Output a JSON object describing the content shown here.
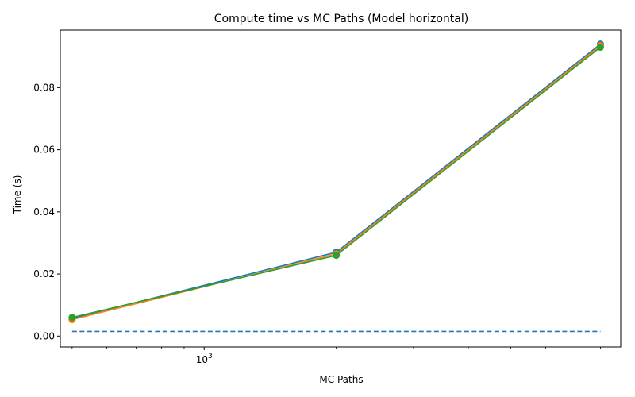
{
  "chart_data": {
    "type": "line",
    "title": "Compute time vs MC Paths (Model horizontal)",
    "xlabel": "MC Paths",
    "ylabel": "Time (s)",
    "xscale": "log",
    "xlim": [
      470,
      8900
    ],
    "ylim": [
      -0.0035,
      0.0985
    ],
    "x": [
      500,
      2000,
      8000
    ],
    "x_tick_labels": [
      {
        "value": 1000,
        "base": "10",
        "exp": "3"
      }
    ],
    "y_ticks": [
      0.0,
      0.02,
      0.04,
      0.06,
      0.08
    ],
    "y_tick_labels": [
      "0.00",
      "0.02",
      "0.04",
      "0.06",
      "0.08"
    ],
    "grid": false,
    "series": [
      {
        "color": "#1f77b4",
        "style": "solid",
        "marker": true,
        "values": [
          0.0057,
          0.027,
          0.094
        ]
      },
      {
        "color": "#ff7f0e",
        "style": "solid",
        "marker": true,
        "values": [
          0.0053,
          0.0265,
          0.0935
        ]
      },
      {
        "color": "#2ca02c",
        "style": "solid",
        "marker": true,
        "values": [
          0.006,
          0.026,
          0.093
        ]
      },
      {
        "color": "#1f77b4",
        "style": "dashed",
        "marker": false,
        "values": [
          0.0015,
          0.0015,
          0.0015
        ]
      }
    ]
  }
}
